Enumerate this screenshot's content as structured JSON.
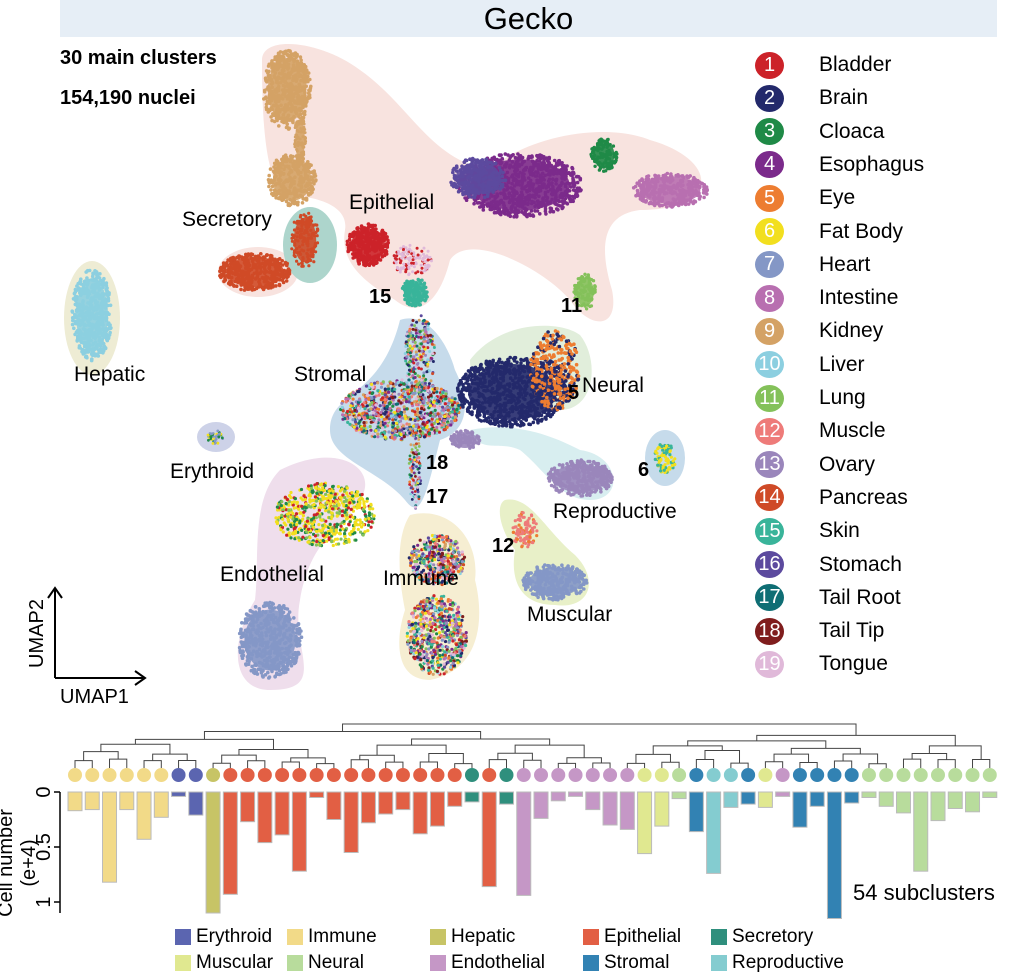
{
  "title": "Gecko",
  "stats": {
    "clusters": "30 main clusters",
    "nuclei": "154,190 nuclei"
  },
  "region_labels": {
    "secretory": "Secretory",
    "epithelial": "Epithelial",
    "hepatic": "Hepatic",
    "stromal": "Stromal",
    "neural": "Neural",
    "erythroid": "Erythroid",
    "reproductive": "Reproductive",
    "endothelial": "Endothelial",
    "immune": "Immune",
    "muscular": "Muscular"
  },
  "cluster_numbers": {
    "n15": "15",
    "n11": "11",
    "n18": "18",
    "n17": "17",
    "n6": "6",
    "n12": "12",
    "n5": "5"
  },
  "axes": {
    "umap1": "UMAP1",
    "umap2": "UMAP2"
  },
  "tissues": [
    {
      "n": "1",
      "name": "Bladder",
      "color": "#cc2229"
    },
    {
      "n": "2",
      "name": "Brain",
      "color": "#23296b"
    },
    {
      "n": "3",
      "name": "Cloaca",
      "color": "#1f8a47"
    },
    {
      "n": "4",
      "name": "Esophagus",
      "color": "#7b2a8b"
    },
    {
      "n": "5",
      "name": "Eye",
      "color": "#ed7d31"
    },
    {
      "n": "6",
      "name": "Fat Body",
      "color": "#f2df1f"
    },
    {
      "n": "7",
      "name": "Heart",
      "color": "#8497c6"
    },
    {
      "n": "8",
      "name": "Intestine",
      "color": "#b86fb0"
    },
    {
      "n": "9",
      "name": "Kidney",
      "color": "#d4a265"
    },
    {
      "n": "10",
      "name": "Liver",
      "color": "#8ccfe0"
    },
    {
      "n": "11",
      "name": "Lung",
      "color": "#84c15a"
    },
    {
      "n": "12",
      "name": "Muscle",
      "color": "#ee7b79"
    },
    {
      "n": "13",
      "name": "Ovary",
      "color": "#9a86bb"
    },
    {
      "n": "14",
      "name": "Pancreas",
      "color": "#cf4a27"
    },
    {
      "n": "15",
      "name": "Skin",
      "color": "#39b49a"
    },
    {
      "n": "16",
      "name": "Stomach",
      "color": "#5c4a9e"
    },
    {
      "n": "17",
      "name": "Tail Root",
      "color": "#0f6e74"
    },
    {
      "n": "18",
      "name": "Tail Tip",
      "color": "#7f1d1d"
    },
    {
      "n": "19",
      "name": "Tongue",
      "color": "#e0b9d9"
    }
  ],
  "chart_data": {
    "type": "bar",
    "ylabel": "Cell number (e+4)",
    "yticks": [
      "0",
      "0.5",
      "1"
    ],
    "ylim": [
      0,
      1.2
    ],
    "orientation": "downward",
    "annotation": "54 subclusters",
    "dendrogram": true,
    "category_colors": {
      "Erythroid": "#5b65b0",
      "Immune": "#f2da88",
      "Hepatic": "#c7c466",
      "Epithelial": "#e25f44",
      "Secretory": "#2f8f7d",
      "Muscular": "#e0e890",
      "Neural": "#b8dc9c",
      "Endothelial": "#c597c6",
      "Stromal": "#3282b3",
      "Reproductive": "#84ccd0"
    },
    "legend": [
      "Erythroid",
      "Immune",
      "Hepatic",
      "Epithelial",
      "Secretory",
      "Muscular",
      "Neural",
      "Endothelial",
      "Stromal",
      "Reproductive"
    ],
    "bars": [
      {
        "category": "Immune",
        "value": 0.17
      },
      {
        "category": "Immune",
        "value": 0.16
      },
      {
        "category": "Immune",
        "value": 0.82
      },
      {
        "category": "Immune",
        "value": 0.16
      },
      {
        "category": "Immune",
        "value": 0.43
      },
      {
        "category": "Immune",
        "value": 0.23
      },
      {
        "category": "Erythroid",
        "value": 0.04
      },
      {
        "category": "Erythroid",
        "value": 0.21
      },
      {
        "category": "Hepatic",
        "value": 1.1
      },
      {
        "category": "Epithelial",
        "value": 0.93
      },
      {
        "category": "Epithelial",
        "value": 0.27
      },
      {
        "category": "Epithelial",
        "value": 0.46
      },
      {
        "category": "Epithelial",
        "value": 0.39
      },
      {
        "category": "Epithelial",
        "value": 0.72
      },
      {
        "category": "Epithelial",
        "value": 0.05
      },
      {
        "category": "Epithelial",
        "value": 0.25
      },
      {
        "category": "Epithelial",
        "value": 0.55
      },
      {
        "category": "Epithelial",
        "value": 0.28
      },
      {
        "category": "Epithelial",
        "value": 0.2
      },
      {
        "category": "Epithelial",
        "value": 0.16
      },
      {
        "category": "Epithelial",
        "value": 0.38
      },
      {
        "category": "Epithelial",
        "value": 0.31
      },
      {
        "category": "Epithelial",
        "value": 0.13
      },
      {
        "category": "Secretory",
        "value": 0.09
      },
      {
        "category": "Epithelial",
        "value": 0.86
      },
      {
        "category": "Secretory",
        "value": 0.11
      },
      {
        "category": "Endothelial",
        "value": 0.94
      },
      {
        "category": "Endothelial",
        "value": 0.24
      },
      {
        "category": "Endothelial",
        "value": 0.08
      },
      {
        "category": "Endothelial",
        "value": 0.04
      },
      {
        "category": "Endothelial",
        "value": 0.16
      },
      {
        "category": "Endothelial",
        "value": 0.3
      },
      {
        "category": "Endothelial",
        "value": 0.34
      },
      {
        "category": "Muscular",
        "value": 0.56
      },
      {
        "category": "Muscular",
        "value": 0.31
      },
      {
        "category": "Neural",
        "value": 0.06
      },
      {
        "category": "Stromal",
        "value": 0.36
      },
      {
        "category": "Reproductive",
        "value": 0.74
      },
      {
        "category": "Reproductive",
        "value": 0.14
      },
      {
        "category": "Stromal",
        "value": 0.11
      },
      {
        "category": "Muscular",
        "value": 0.14
      },
      {
        "category": "Endothelial",
        "value": 0.04
      },
      {
        "category": "Stromal",
        "value": 0.32
      },
      {
        "category": "Stromal",
        "value": 0.13
      },
      {
        "category": "Stromal",
        "value": 1.15
      },
      {
        "category": "Stromal",
        "value": 0.1
      },
      {
        "category": "Neural",
        "value": 0.05
      },
      {
        "category": "Neural",
        "value": 0.13
      },
      {
        "category": "Neural",
        "value": 0.19
      },
      {
        "category": "Neural",
        "value": 0.72
      },
      {
        "category": "Neural",
        "value": 0.26
      },
      {
        "category": "Neural",
        "value": 0.15
      },
      {
        "category": "Neural",
        "value": 0.18
      },
      {
        "category": "Neural",
        "value": 0.05
      }
    ]
  }
}
